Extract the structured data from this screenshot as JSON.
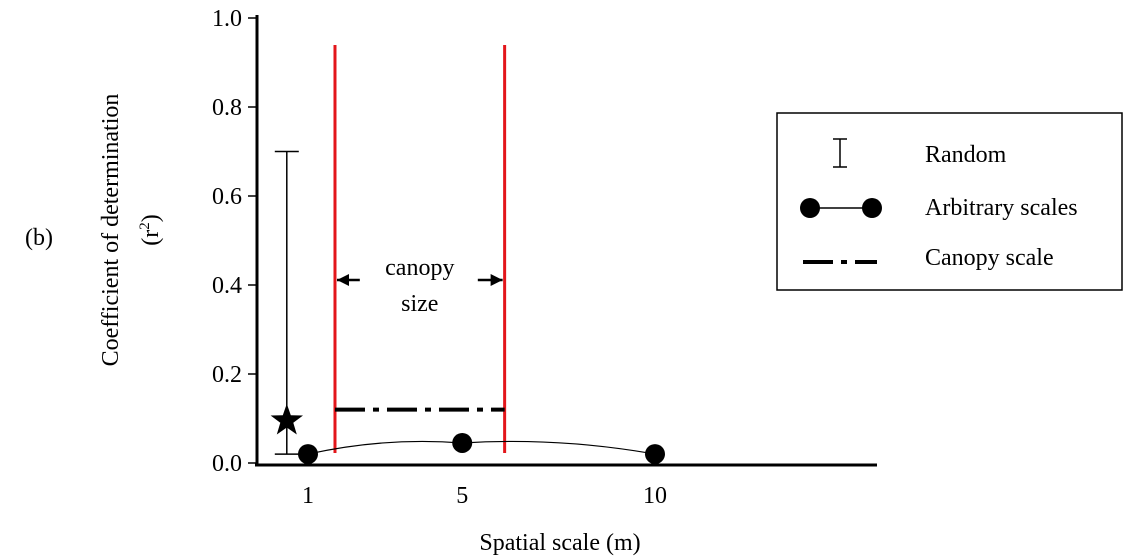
{
  "panel_label": "(b)",
  "chart_data": {
    "type": "scatter",
    "xlabel": "Spatial scale (m)",
    "ylabel": "Coefficient of determination",
    "ylabel_line2": "(r",
    "ylabel_sup": "2",
    "ylabel_close": ")",
    "x_ticks": [
      "1",
      "5",
      "10"
    ],
    "y_ticks": [
      "0.0",
      "0.2",
      "0.4",
      "0.6",
      "0.8",
      "1.0"
    ],
    "ylim": [
      0,
      1
    ],
    "series": [
      {
        "name": "Random",
        "kind": "errorbar",
        "point": {
          "x": 0.45,
          "y": 0.095
        },
        "low": 0.02,
        "high": 0.7
      },
      {
        "name": "Arbitrary scales",
        "kind": "points-curve",
        "x": [
          1,
          5,
          10
        ],
        "y": [
          0.02,
          0.045,
          0.02
        ]
      },
      {
        "name": "Canopy scale",
        "kind": "dash-dot",
        "x_range": [
          1.7,
          6.1
        ],
        "y": 0.12
      }
    ],
    "canopy_boundaries": {
      "x": [
        1.7,
        6.1
      ],
      "color": "#e3161b"
    },
    "annotation": {
      "line1": "canopy",
      "line2": "size"
    },
    "legend": {
      "placement": "right"
    }
  }
}
